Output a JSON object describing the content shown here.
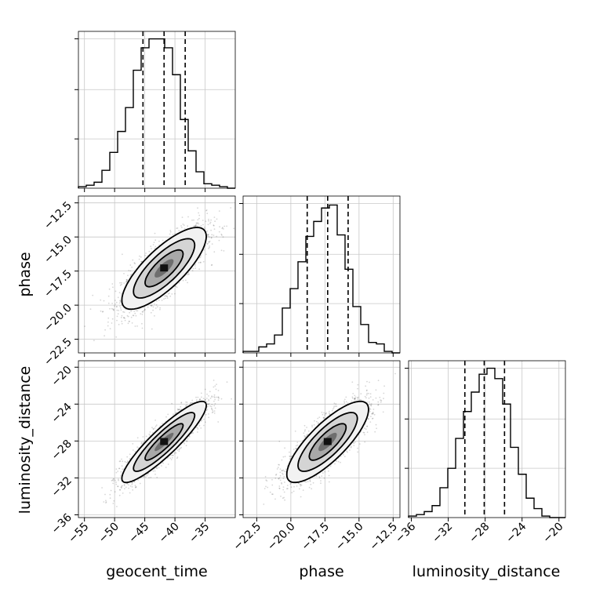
{
  "chart_data": {
    "type": "corner",
    "parameters": [
      {
        "name": "geocent_time",
        "axis_label": "geocent_time",
        "range": [
          -56,
          -30
        ],
        "ticks": [
          "−55",
          "−50",
          "−45",
          "−40",
          "−35"
        ],
        "tick_values": [
          -55,
          -50,
          -45,
          -40,
          -35
        ],
        "quantiles": [
          -45.3,
          -41.8,
          -38.3
        ],
        "histogram": {
          "bin_edges": [
            -56,
            -54.7,
            -53.4,
            -52.1,
            -50.8,
            -49.5,
            -48.2,
            -46.9,
            -45.6,
            -44.3,
            -43,
            -41.7,
            -40.4,
            -39.1,
            -37.8,
            -36.5,
            -35.2,
            -33.9,
            -32.6,
            -31.3,
            -30
          ],
          "counts": [
            0.01,
            0.02,
            0.04,
            0.12,
            0.24,
            0.38,
            0.54,
            0.79,
            0.94,
            1.0,
            1.0,
            0.94,
            0.76,
            0.46,
            0.25,
            0.11,
            0.03,
            0.02,
            0.01,
            0.0
          ]
        }
      },
      {
        "name": "phase",
        "axis_label": "phase",
        "range": [
          -23.5,
          -12
        ],
        "ticks": [
          "−22.5",
          "−20.0",
          "−17.5",
          "−15.0",
          "−12.5"
        ],
        "tick_values": [
          -22.5,
          -20.0,
          -17.5,
          -15.0,
          -12.5
        ],
        "quantiles": [
          -18.8,
          -17.3,
          -15.8
        ],
        "histogram": {
          "bin_edges": [
            -23.5,
            -22.925,
            -22.35,
            -21.775,
            -21.2,
            -20.625,
            -20.05,
            -19.475,
            -18.9,
            -18.325,
            -17.75,
            -17.175,
            -16.6,
            -16.025,
            -15.45,
            -14.875,
            -14.3,
            -13.725,
            -13.15,
            -12.575,
            -12
          ],
          "counts": [
            0.01,
            0.01,
            0.04,
            0.06,
            0.12,
            0.3,
            0.43,
            0.61,
            0.78,
            0.88,
            0.97,
            0.99,
            0.79,
            0.56,
            0.31,
            0.19,
            0.07,
            0.06,
            0.01,
            0.0
          ]
        }
      },
      {
        "name": "luminosity_distance",
        "axis_label": "luminosity_distance",
        "range": [
          -36.3,
          -19.3
        ],
        "ticks": [
          "−36",
          "−32",
          "−28",
          "−24",
          "−20"
        ],
        "tick_values": [
          -36,
          -32,
          -28,
          -24,
          -20
        ],
        "quantiles": [
          -30.2,
          -28.1,
          -25.9
        ],
        "histogram": {
          "bin_edges": [
            -36.3,
            -35.45,
            -34.6,
            -33.75,
            -32.9,
            -32.05,
            -31.2,
            -30.35,
            -29.5,
            -28.65,
            -27.8,
            -26.95,
            -26.1,
            -25.25,
            -24.4,
            -23.55,
            -22.7,
            -21.85,
            -21,
            -20.15,
            -19.3
          ],
          "counts": [
            0.01,
            0.02,
            0.04,
            0.08,
            0.2,
            0.33,
            0.53,
            0.71,
            0.84,
            0.96,
            1.0,
            0.93,
            0.76,
            0.47,
            0.29,
            0.13,
            0.06,
            0.01,
            0.0,
            0.0
          ]
        }
      }
    ],
    "pairs": [
      {
        "x": "geocent_time",
        "y": "phase",
        "mean": [
          -41.8,
          -17.3
        ],
        "sd": [
          3.5,
          1.5
        ],
        "correlation": 0.78
      },
      {
        "x": "geocent_time",
        "y": "luminosity_distance",
        "mean": [
          -41.8,
          -28.1
        ],
        "sd": [
          3.5,
          2.2
        ],
        "correlation": 0.9
      },
      {
        "x": "phase",
        "y": "luminosity_distance",
        "mean": [
          -17.3,
          -28.1
        ],
        "sd": [
          1.5,
          2.2
        ],
        "correlation": 0.8
      }
    ],
    "grid": true,
    "hist_ticks": {
      "geocent_time": 3,
      "phase": 3,
      "luminosity_distance": 3
    }
  }
}
